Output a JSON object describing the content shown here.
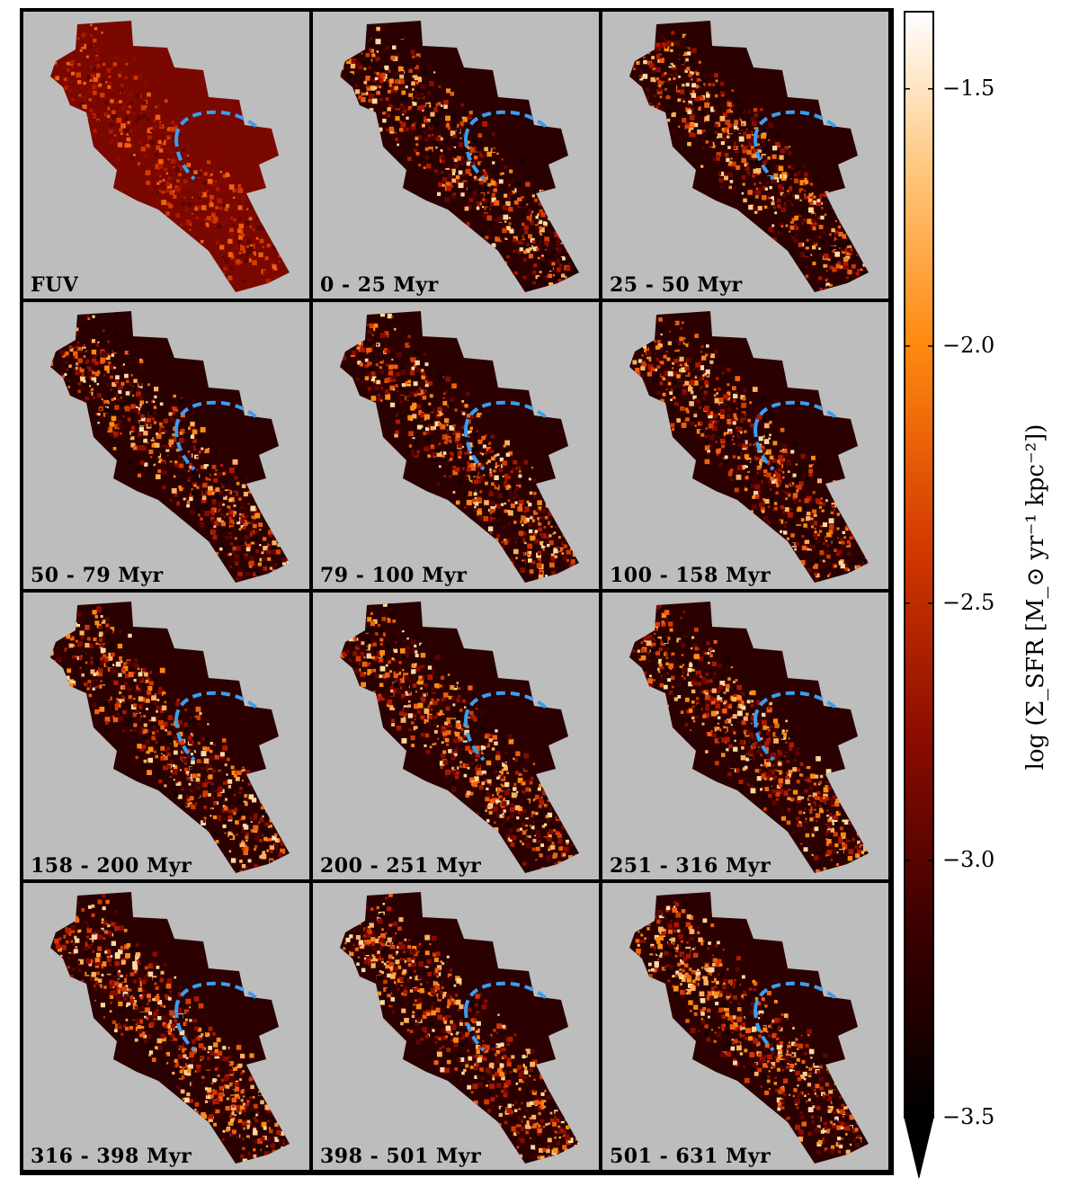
{
  "panels": [
    {
      "label": "FUV"
    },
    {
      "label": "0 - 25 Myr"
    },
    {
      "label": "25 - 50 Myr"
    },
    {
      "label": "50 - 79 Myr"
    },
    {
      "label": "79 - 100 Myr"
    },
    {
      "label": "100 - 158 Myr"
    },
    {
      "label": "158 - 200 Myr"
    },
    {
      "label": "200 - 251 Myr"
    },
    {
      "label": "251 - 316 Myr"
    },
    {
      "label": "316 - 398 Myr"
    },
    {
      "label": "398 - 501 Myr"
    },
    {
      "label": "501 - 631 Myr"
    }
  ],
  "colorbar": {
    "title": "log (Σ_SFR [M_⊙ yr⁻¹ kpc⁻²])",
    "ticks": [
      "−1.5",
      "−2.0",
      "−2.5",
      "−3.0",
      "−3.5"
    ],
    "tick_values": [
      -1.5,
      -2.0,
      -2.5,
      -3.0,
      -3.5
    ],
    "range": [
      -3.5,
      -1.35
    ],
    "colormap": [
      "#000000",
      "#3a0000",
      "#8a0b00",
      "#d43a00",
      "#ff8a10",
      "#ffc880",
      "#ffffff"
    ]
  },
  "colors": {
    "background": "#bdbdbd",
    "dashed_contour": "#3b9ef0"
  }
}
